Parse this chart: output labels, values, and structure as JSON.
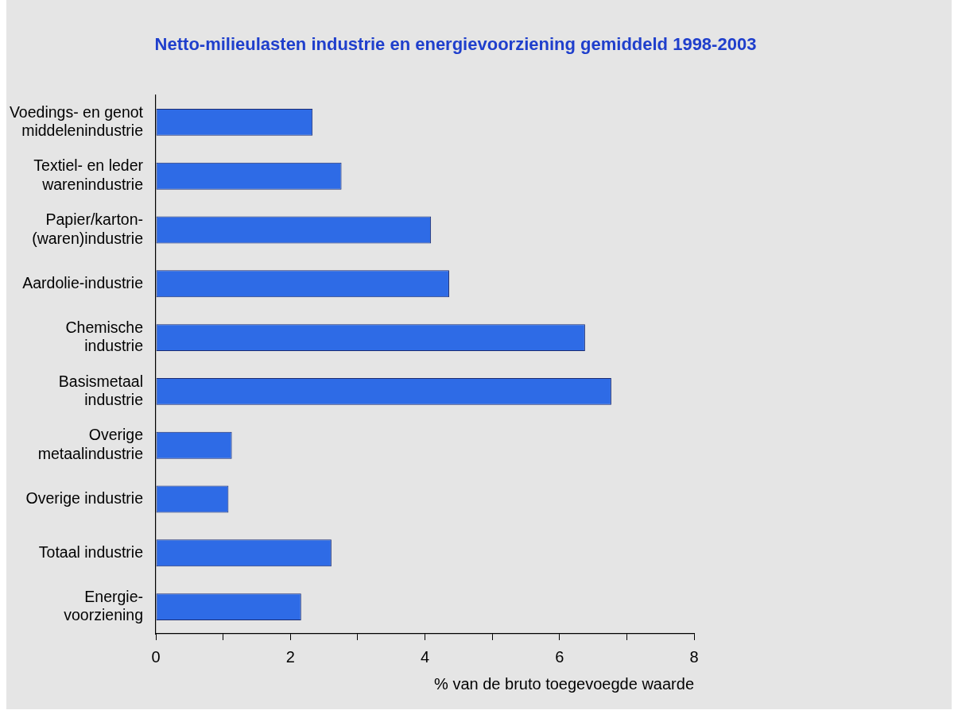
{
  "chart_data": {
    "type": "bar",
    "orientation": "horizontal",
    "title": "Netto-milieulasten industrie en energievoorziening gemiddeld 1998-2003",
    "xlabel": "% van de bruto toegevoegde waarde",
    "categories": [
      "Voedings- en genot\nmiddelenindustrie",
      "Textiel- en leder\nwarenindustrie",
      "Papier/karton-\n(waren)industrie",
      "Aardolie-industrie",
      "Chemische\nindustrie",
      "Basismetaal\nindustrie",
      "Overige\nmetaalindustrie",
      "Overige industrie",
      "Totaal industrie",
      "Energie-\nvoorziening"
    ],
    "values": [
      2.33,
      2.76,
      4.09,
      4.36,
      6.38,
      6.77,
      1.13,
      1.08,
      2.61,
      2.16
    ],
    "color": "#2e6be6",
    "xlim": [
      0,
      8
    ],
    "xticks": [
      0,
      {
        "value": 1,
        "label": null
      },
      2,
      {
        "value": 3,
        "label": null
      },
      4,
      {
        "value": 5,
        "label": null
      },
      6,
      {
        "value": 7,
        "label": null
      },
      8
    ]
  }
}
